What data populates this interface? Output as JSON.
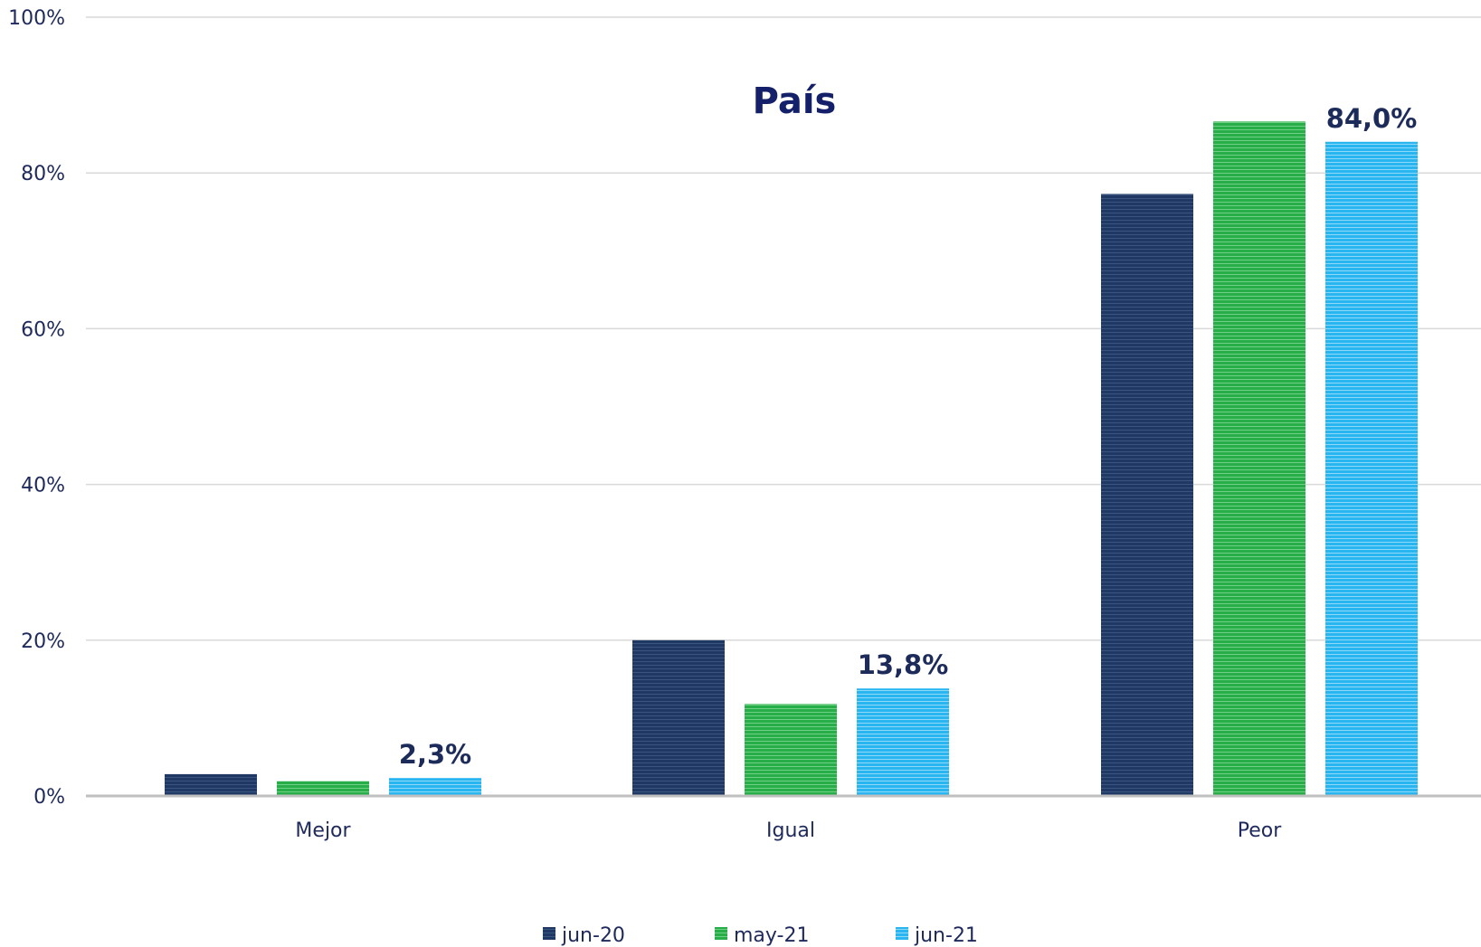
{
  "chart_data": {
    "type": "bar",
    "title": "País",
    "categories": [
      "Mejor",
      "Igual",
      "Peor"
    ],
    "series": [
      {
        "name": "jun-20",
        "values": [
          2.8,
          20.0,
          77.3
        ],
        "color": "#1f3864"
      },
      {
        "name": "may-21",
        "values": [
          1.9,
          11.8,
          86.6
        ],
        "color": "#28b04a"
      },
      {
        "name": "jun-21",
        "values": [
          2.3,
          13.8,
          84.0
        ],
        "color": "#29b6f0"
      }
    ],
    "data_labels": [
      {
        "series": "jun-21",
        "category": "Mejor",
        "text": "2,3%"
      },
      {
        "series": "jun-21",
        "category": "Igual",
        "text": "13,8%"
      },
      {
        "series": "jun-21",
        "category": "Peor",
        "text": "84,0%"
      }
    ],
    "y_ticks": [
      "0%",
      "20%",
      "40%",
      "60%",
      "80%",
      "100%"
    ],
    "ylim": [
      0,
      100
    ],
    "xlabel": "",
    "ylabel": "",
    "grid": true,
    "legend_position": "bottom-center"
  }
}
